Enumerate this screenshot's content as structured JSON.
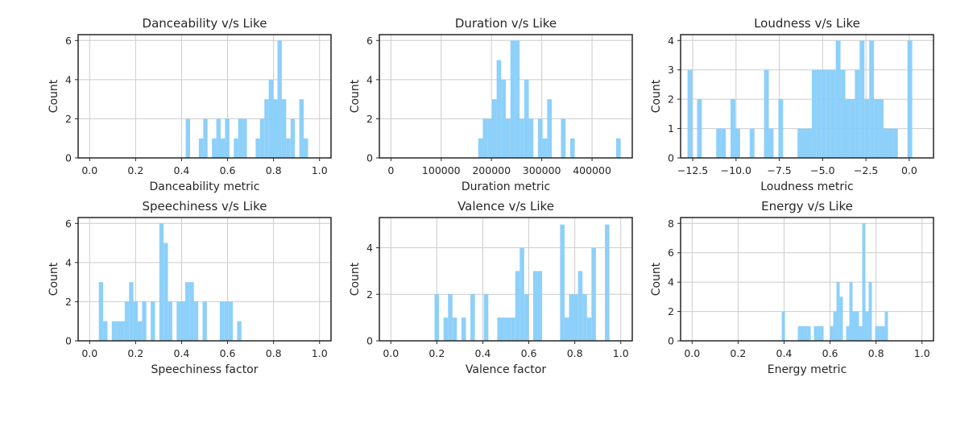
{
  "chart_data": [
    {
      "type": "histogram",
      "title": "Danceability v/s Like",
      "xlabel": "Danceability metric",
      "ylabel": "Count",
      "xlim": [
        -0.05,
        1.05
      ],
      "ylim": [
        0,
        6.3
      ],
      "xticks": [
        0,
        0.2,
        0.4,
        0.6,
        0.8,
        1.0
      ],
      "xtick_labels": [
        "0.0",
        "0.2",
        "0.4",
        "0.6",
        "0.8",
        "1.0"
      ],
      "yticks": [
        0,
        2,
        4,
        6
      ],
      "ytick_labels": [
        "0",
        "2",
        "4",
        "6"
      ],
      "bin_range": [
        0,
        0.95
      ],
      "bin_count": 50,
      "counts": [
        0,
        0,
        0,
        0,
        0,
        0,
        0,
        0,
        0,
        0,
        0,
        0,
        0,
        0,
        0,
        0,
        0,
        0,
        0,
        0,
        0,
        0,
        2,
        0,
        0,
        1,
        2,
        0,
        1,
        2,
        1,
        2,
        0,
        1,
        2,
        2,
        0,
        0,
        1,
        2,
        3,
        4,
        3,
        6,
        3,
        1,
        2,
        0,
        3,
        1
      ]
    },
    {
      "type": "histogram",
      "title": "Duration v/s Like",
      "xlabel": "Duration metric",
      "ylabel": "Count",
      "xlim": [
        -23000,
        480000
      ],
      "ylim": [
        0,
        6.3
      ],
      "xticks": [
        0,
        100000,
        200000,
        300000,
        400000
      ],
      "xtick_labels": [
        "0",
        "100000",
        "200000",
        "300000",
        "400000"
      ],
      "yticks": [
        0,
        2,
        4,
        6
      ],
      "ytick_labels": [
        "0",
        "2",
        "4",
        "6"
      ],
      "bin_range": [
        0,
        457000
      ],
      "bin_count": 50,
      "counts": [
        0,
        0,
        0,
        0,
        0,
        0,
        0,
        0,
        0,
        0,
        0,
        0,
        0,
        0,
        0,
        0,
        0,
        0,
        0,
        1,
        2,
        2,
        3,
        5,
        4,
        2,
        6,
        6,
        2,
        4,
        2,
        0,
        2,
        1,
        3,
        0,
        0,
        2,
        0,
        1,
        0,
        0,
        0,
        0,
        0,
        0,
        0,
        0,
        0,
        1
      ]
    },
    {
      "type": "histogram",
      "title": "Loudness v/s Like",
      "xlabel": "Loudness metric",
      "ylabel": "Count",
      "xlim": [
        -13.2,
        1.4
      ],
      "ylim": [
        0,
        4.2
      ],
      "xticks": [
        -12.5,
        -10.0,
        -7.5,
        -5.0,
        -2.5,
        0.0
      ],
      "xtick_labels": [
        "−12.5",
        "−10.0",
        "−7.5",
        "−5.0",
        "−2.5",
        "0.0"
      ],
      "yticks": [
        0,
        1,
        2,
        3,
        4
      ],
      "ytick_labels": [
        "0",
        "1",
        "2",
        "3",
        "4"
      ],
      "bin_range": [
        -12.8,
        1.0
      ],
      "bin_count": 50,
      "counts": [
        3,
        0,
        2,
        0,
        0,
        0,
        1,
        1,
        0,
        2,
        1,
        0,
        0,
        1,
        0,
        0,
        3,
        1,
        0,
        2,
        0,
        0,
        0,
        1,
        1,
        1,
        3,
        3,
        3,
        3,
        3,
        4,
        3,
        2,
        2,
        3,
        4,
        2,
        4,
        2,
        2,
        1,
        1,
        1,
        0,
        0,
        4,
        0,
        0,
        0
      ]
    },
    {
      "type": "histogram",
      "title": "Speechiness v/s Like",
      "xlabel": "Speechiness factor",
      "ylabel": "Count",
      "xlim": [
        -0.05,
        1.05
      ],
      "ylim": [
        0,
        6.3
      ],
      "xticks": [
        0,
        0.2,
        0.4,
        0.6,
        0.8,
        1.0
      ],
      "xtick_labels": [
        "0.0",
        "0.2",
        "0.4",
        "0.6",
        "0.8",
        "1.0"
      ],
      "yticks": [
        0,
        2,
        4,
        6
      ],
      "ytick_labels": [
        "0",
        "2",
        "4",
        "6"
      ],
      "bin_range": [
        0.04,
        0.98
      ],
      "bin_count": 50,
      "counts": [
        3,
        1,
        0,
        1,
        1,
        1,
        2,
        3,
        2,
        1,
        2,
        0,
        2,
        0,
        6,
        5,
        2,
        0,
        2,
        2,
        3,
        3,
        2,
        0,
        2,
        0,
        0,
        0,
        2,
        2,
        2,
        0,
        1,
        0,
        0,
        0,
        0,
        0,
        0,
        0,
        0,
        0,
        0,
        0,
        0,
        0,
        0,
        0,
        0,
        0
      ]
    },
    {
      "type": "histogram",
      "title": "Valence v/s Like",
      "xlabel": "Valence factor",
      "ylabel": "Count",
      "xlim": [
        -0.05,
        1.05
      ],
      "ylim": [
        0,
        5.3
      ],
      "xticks": [
        0,
        0.2,
        0.4,
        0.6,
        0.8,
        1.0
      ],
      "xtick_labels": [
        "0.0",
        "0.2",
        "0.4",
        "0.6",
        "0.8",
        "1.0"
      ],
      "yticks": [
        0,
        2,
        4
      ],
      "ytick_labels": [
        "0",
        "2",
        "4"
      ],
      "bin_range": [
        0.19,
        0.97
      ],
      "bin_count": 40,
      "counts": [
        2,
        0,
        1,
        2,
        1,
        0,
        1,
        0,
        2,
        0,
        0,
        2,
        0,
        0,
        1,
        1,
        1,
        1,
        3,
        4,
        2,
        0,
        3,
        3,
        0,
        0,
        0,
        0,
        5,
        1,
        2,
        2,
        3,
        2,
        1,
        4,
        0,
        0,
        5,
        0
      ]
    },
    {
      "type": "histogram",
      "title": "Energy v/s Like",
      "xlabel": "Energy metric",
      "ylabel": "Count",
      "xlim": [
        -0.05,
        1.05
      ],
      "ylim": [
        0,
        8.4
      ],
      "xticks": [
        0,
        0.2,
        0.4,
        0.6,
        0.8,
        1.0
      ],
      "xtick_labels": [
        "0.0",
        "0.2",
        "0.4",
        "0.6",
        "0.8",
        "1.0"
      ],
      "yticks": [
        0,
        2,
        4,
        6,
        8
      ],
      "ytick_labels": [
        "0",
        "2",
        "4",
        "6",
        "8"
      ],
      "bin_range": [
        0.39,
        0.95
      ],
      "bin_count": 40,
      "counts": [
        2,
        0,
        0,
        0,
        0,
        1,
        1,
        1,
        1,
        0,
        1,
        1,
        1,
        0,
        0,
        1,
        2,
        4,
        3,
        0,
        1,
        4,
        2,
        2,
        1,
        8,
        2,
        4,
        0,
        1,
        1,
        1,
        2,
        0,
        0,
        0,
        0,
        0,
        0,
        0
      ]
    }
  ]
}
